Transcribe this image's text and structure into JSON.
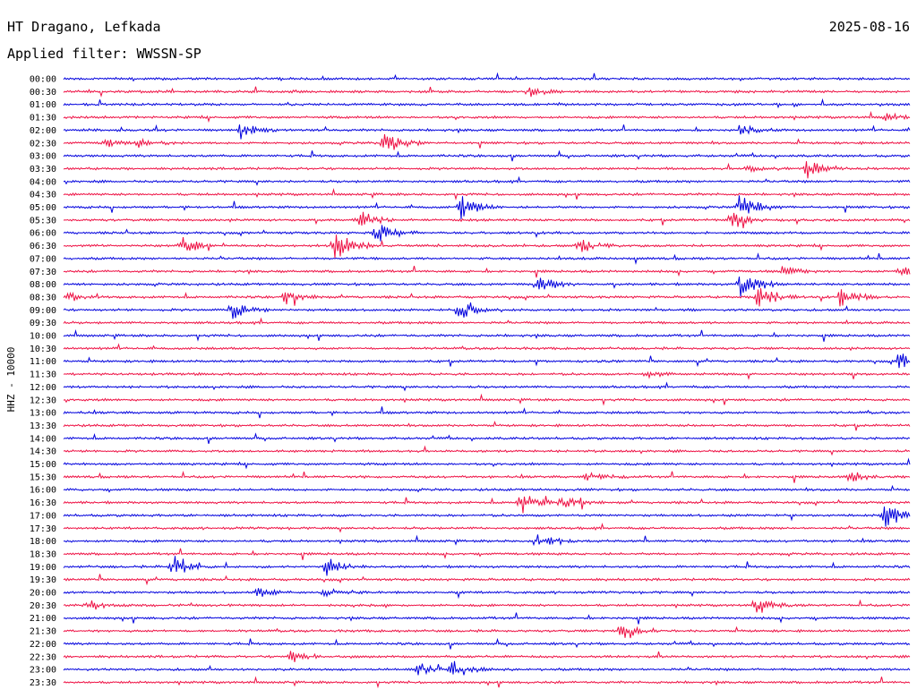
{
  "header": {
    "station": "HT Dragano, Lefkada",
    "date": "2025-08-16",
    "filter": "Applied filter: WWSSN-SP"
  },
  "chart_data": {
    "type": "line",
    "title": "HT Dragano, Lefkada",
    "ylabel": "HHZ - 10000",
    "row_labels": [
      "00:00",
      "00:30",
      "01:00",
      "01:30",
      "02:00",
      "02:30",
      "03:00",
      "03:30",
      "04:00",
      "04:30",
      "05:00",
      "05:30",
      "06:00",
      "06:30",
      "07:00",
      "07:30",
      "08:00",
      "08:30",
      "09:00",
      "09:30",
      "10:00",
      "10:30",
      "11:00",
      "11:30",
      "12:00",
      "12:30",
      "13:00",
      "13:30",
      "14:00",
      "14:30",
      "15:00",
      "15:30",
      "16:00",
      "16:30",
      "17:00",
      "17:30",
      "18:00",
      "18:30",
      "19:00",
      "19:30",
      "20:00",
      "20:30",
      "21:00",
      "21:30",
      "22:00",
      "22:30",
      "23:00",
      "23:30"
    ],
    "series_colors": [
      "#0000dd",
      "#ee1144"
    ],
    "events": [
      {
        "row": 1,
        "x": 0.55,
        "amp": 8
      },
      {
        "row": 3,
        "x": 0.97,
        "amp": 6
      },
      {
        "row": 4,
        "x": 0.21,
        "amp": 12
      },
      {
        "row": 4,
        "x": 0.8,
        "amp": 9
      },
      {
        "row": 5,
        "x": 0.05,
        "amp": 7
      },
      {
        "row": 5,
        "x": 0.09,
        "amp": 9
      },
      {
        "row": 5,
        "x": 0.38,
        "amp": 20
      },
      {
        "row": 7,
        "x": 0.81,
        "amp": 6
      },
      {
        "row": 7,
        "x": 0.88,
        "amp": 18
      },
      {
        "row": 10,
        "x": 0.47,
        "amp": 22
      },
      {
        "row": 10,
        "x": 0.8,
        "amp": 24
      },
      {
        "row": 11,
        "x": 0.35,
        "amp": 14
      },
      {
        "row": 11,
        "x": 0.79,
        "amp": 14
      },
      {
        "row": 12,
        "x": 0.37,
        "amp": 18
      },
      {
        "row": 13,
        "x": 0.14,
        "amp": 14
      },
      {
        "row": 13,
        "x": 0.32,
        "amp": 30
      },
      {
        "row": 13,
        "x": 0.61,
        "amp": 12
      },
      {
        "row": 15,
        "x": 0.85,
        "amp": 8
      },
      {
        "row": 15,
        "x": 0.99,
        "amp": 8
      },
      {
        "row": 16,
        "x": 0.56,
        "amp": 16
      },
      {
        "row": 16,
        "x": 0.8,
        "amp": 26
      },
      {
        "row": 17,
        "x": 0.0,
        "amp": 10
      },
      {
        "row": 17,
        "x": 0.26,
        "amp": 12
      },
      {
        "row": 17,
        "x": 0.82,
        "amp": 28
      },
      {
        "row": 17,
        "x": 0.92,
        "amp": 16
      },
      {
        "row": 18,
        "x": 0.2,
        "amp": 16
      },
      {
        "row": 18,
        "x": 0.47,
        "amp": 18
      },
      {
        "row": 22,
        "x": 0.99,
        "amp": 30
      },
      {
        "row": 23,
        "x": 0.69,
        "amp": 6
      },
      {
        "row": 31,
        "x": 0.62,
        "amp": 8
      },
      {
        "row": 31,
        "x": 0.93,
        "amp": 10
      },
      {
        "row": 33,
        "x": 0.54,
        "amp": 18
      },
      {
        "row": 33,
        "x": 0.59,
        "amp": 12
      },
      {
        "row": 34,
        "x": 0.97,
        "amp": 20
      },
      {
        "row": 36,
        "x": 0.56,
        "amp": 14
      },
      {
        "row": 38,
        "x": 0.13,
        "amp": 20
      },
      {
        "row": 38,
        "x": 0.31,
        "amp": 14
      },
      {
        "row": 40,
        "x": 0.23,
        "amp": 7
      },
      {
        "row": 40,
        "x": 0.31,
        "amp": 8
      },
      {
        "row": 41,
        "x": 0.03,
        "amp": 6
      },
      {
        "row": 41,
        "x": 0.82,
        "amp": 12
      },
      {
        "row": 43,
        "x": 0.66,
        "amp": 16
      },
      {
        "row": 45,
        "x": 0.27,
        "amp": 12
      },
      {
        "row": 46,
        "x": 0.42,
        "amp": 10
      },
      {
        "row": 46,
        "x": 0.46,
        "amp": 14
      }
    ]
  }
}
